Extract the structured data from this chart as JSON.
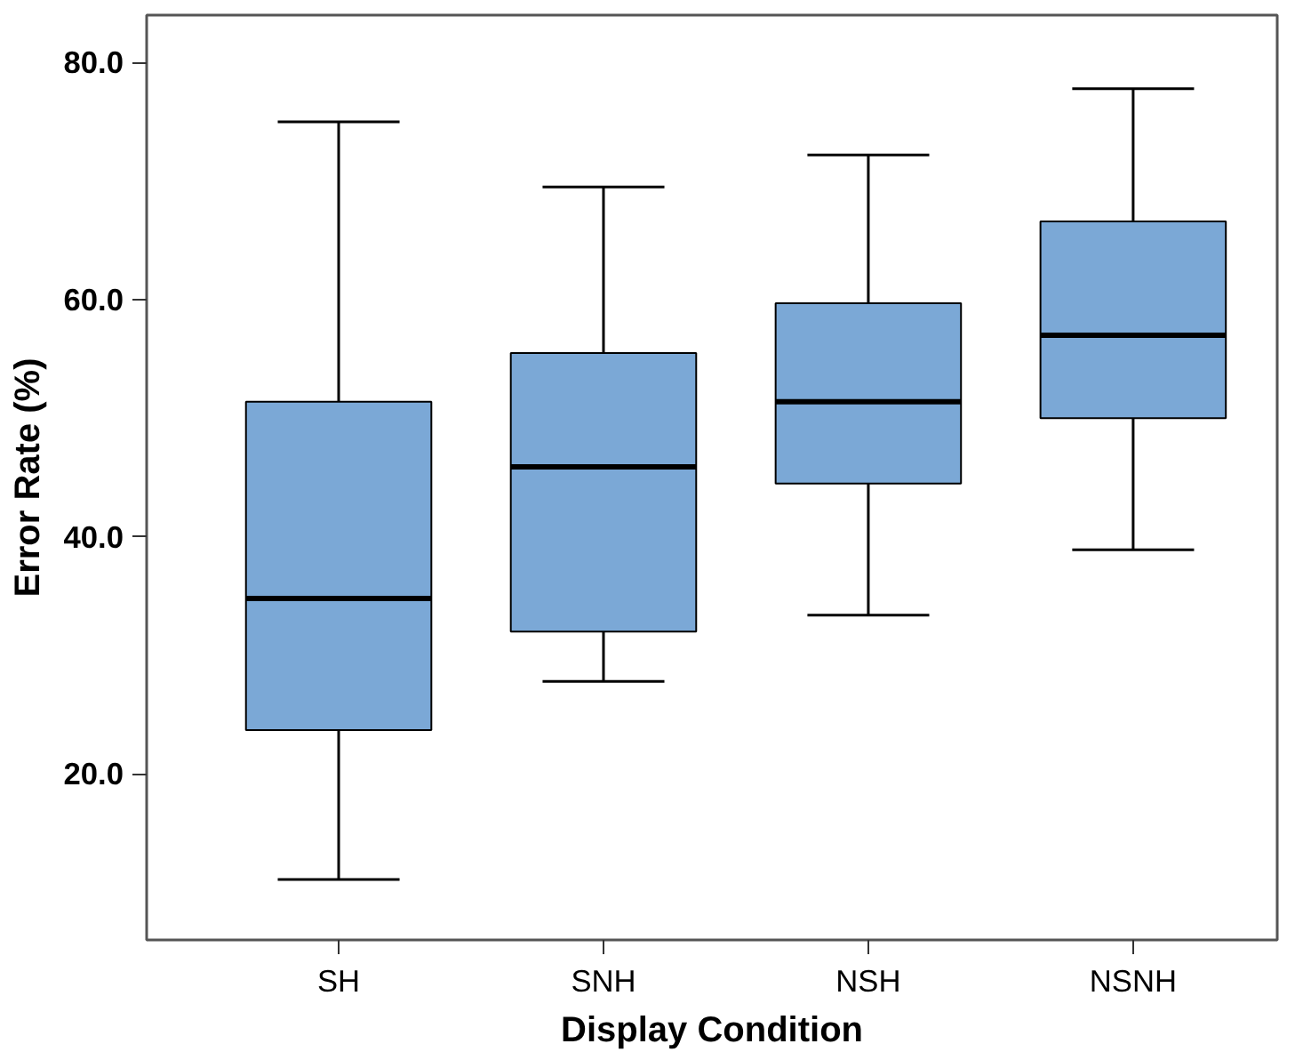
{
  "chart_data": {
    "type": "box",
    "xlabel": "Display Condition",
    "ylabel": "Error Rate (%)",
    "categories": [
      "SH",
      "SNH",
      "NSH",
      "NSNH"
    ],
    "boxes": [
      {
        "low": 11.1,
        "q1": 23.7,
        "median": 34.8,
        "q3": 51.4,
        "high": 75.0
      },
      {
        "low": 27.8,
        "q1": 32.0,
        "median": 45.9,
        "q3": 55.5,
        "high": 69.5
      },
      {
        "low": 33.4,
        "q1": 44.5,
        "median": 51.4,
        "q3": 59.7,
        "high": 72.2
      },
      {
        "low": 38.9,
        "q1": 50.0,
        "median": 57.0,
        "q3": 66.6,
        "high": 77.8
      }
    ],
    "color": "#7ba8d6",
    "ylim": [
      6,
      84
    ],
    "yticks": [
      {
        "value": 20,
        "label": "20.0"
      },
      {
        "value": 40,
        "label": "40.0"
      },
      {
        "value": 60,
        "label": "60.0"
      },
      {
        "value": 80,
        "label": "80.0"
      }
    ],
    "grid": false
  }
}
